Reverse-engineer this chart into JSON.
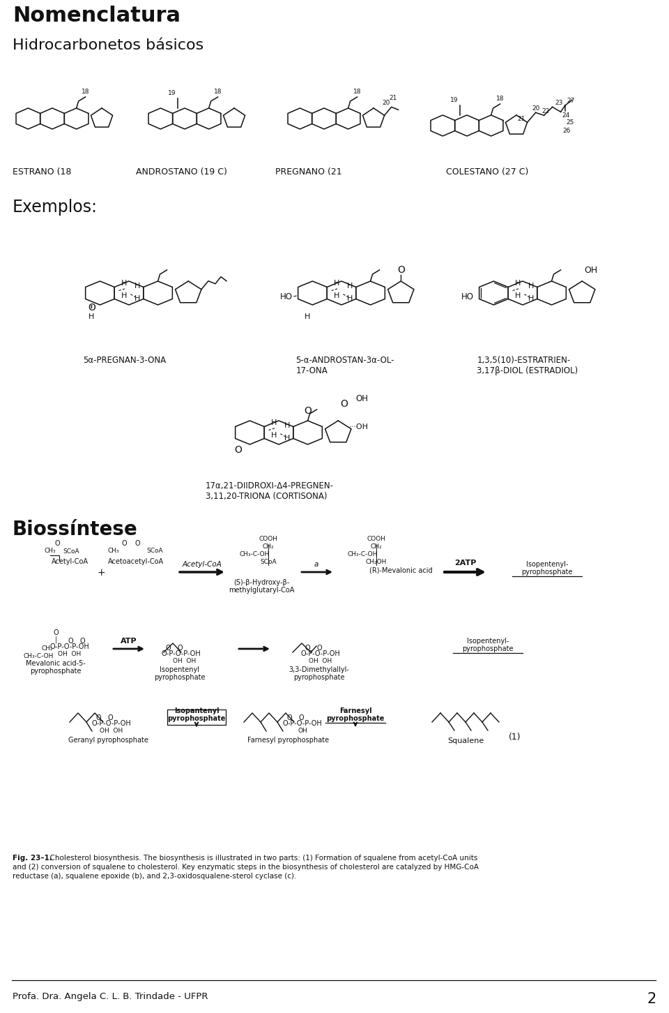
{
  "title": "Nomenclatura",
  "subtitle": "Hidrocarbonetos básicos",
  "exemplos_label": "Exemplos:",
  "biossintese_label": "Biossíntese",
  "footer_text": "Profa. Dra. Angela C. L. B. Trindade - UFPR",
  "page_number": "2",
  "background_color": "#ffffff",
  "text_color": "#000000",
  "compound_labels": [
    "ESTRANO (18",
    "ANDROSTANO (19 C)",
    "PREGNANO (21",
    "COLESTANO (27 C)"
  ],
  "example_labels_line1": [
    "5α-PREGNAN-3-ONA",
    "5-α-ANDROSTAN-3α-OL-",
    "1,3,5(10)-ESTRATRIEN-"
  ],
  "example_labels_line2": [
    "",
    "17-ONA",
    "3,17β-DIOL (ESTRADIOL)"
  ],
  "cortisona_label_1": "17α,21-DIIDROXI-Δ4-PREGNEN-",
  "cortisona_label_2": "3,11,20-TRIONA (CORTISONA)",
  "fig_caption_1": "Fig. 23–1.  Cholesterol biosynthesis. The biosynthesis is illustrated in two parts: (1) Formation of squalene from acetyl-CoA units",
  "fig_caption_2": "and (2) conversion of squalene to cholesterol. Key enzymatic steps in the biosynthesis of cholesterol are catalyzed by HMG-CoA",
  "fig_caption_3": "reductase (a), squalene epoxide (b), and 2,3-oxidosqualene-sterol cyclase (c)."
}
